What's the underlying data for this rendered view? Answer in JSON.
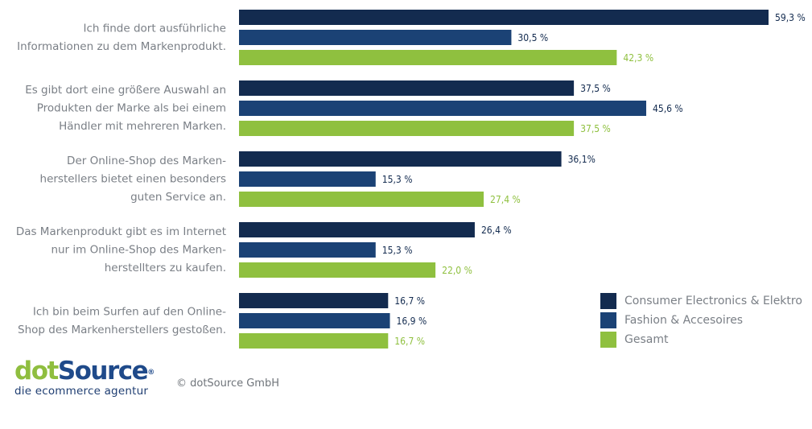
{
  "chart_data": {
    "type": "bar",
    "orientation": "horizontal",
    "categories": [
      [
        "Ich finde dort ausführliche",
        "Informationen zu dem Markenprodukt."
      ],
      [
        "Es gibt dort eine größere Auswahl an",
        "Produkten der Marke als bei einem",
        "Händler mit mehreren Marken."
      ],
      [
        "Der Online-Shop des Marken-",
        "herstellers bietet einen besonders",
        "guten Service an."
      ],
      [
        "Das Markenprodukt gibt es im Internet",
        "nur im Online-Shop des Marken-",
        "herstellters zu kaufen."
      ],
      [
        "Ich bin beim Surfen auf den Online-",
        "Shop des Markenherstellers gestoßen."
      ]
    ],
    "series": [
      {
        "name": "Consumer Electronics & Elektro",
        "color": "#132b4f",
        "values": [
          59.3,
          37.5,
          36.1,
          26.4,
          16.7
        ],
        "labels": [
          "59,3 %",
          "37,5 %",
          "36,1%",
          "26,4 %",
          "16,7 %"
        ]
      },
      {
        "name": "Fashion & Accesoires",
        "color": "#1b4275",
        "values": [
          30.5,
          45.6,
          15.3,
          15.3,
          16.9
        ],
        "labels": [
          "30,5 %",
          "45,6 %",
          "15,3 %",
          "15,3 %",
          "16,9 %"
        ]
      },
      {
        "name": "Gesamt",
        "color": "#8fc03f",
        "values": [
          42.3,
          37.5,
          27.4,
          22.0,
          16.7
        ],
        "labels": [
          "42,3 %",
          "37,5 %",
          "27,4 %",
          "22,0 %",
          "16,7 %"
        ]
      }
    ],
    "value_label_colors": [
      "#132b4f",
      "#132b4f",
      "#8fc03f"
    ],
    "xlim": [
      0,
      60
    ],
    "grid": false,
    "legend_position": "bottom-right"
  },
  "logo": {
    "dot": "dot",
    "source": "Source",
    "reg": "®",
    "tagline": "die ecommerce agentur"
  },
  "copyright": "© dotSource GmbH"
}
